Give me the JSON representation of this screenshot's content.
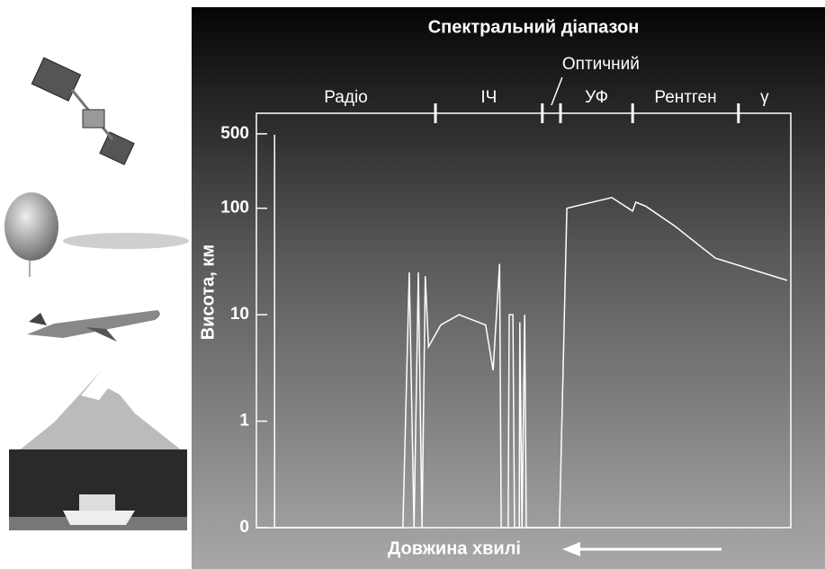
{
  "chart_data": {
    "type": "line",
    "title": "Спектральний діапазон",
    "ylabel": "Висота, км",
    "xlabel": "Довжина хвилі",
    "log_y": true,
    "color": "#ffffff",
    "ylim": [
      0.1,
      780
    ],
    "yticks": [
      {
        "value": 0.1,
        "label": "0"
      },
      1,
      10,
      100,
      500
    ],
    "xlim": [
      0,
      100
    ],
    "spectral_bands": {
      "names": [
        "Радіо",
        "ІЧ",
        "Оптичний",
        "УФ",
        "Рентген",
        "γ"
      ],
      "edges": [
        33.5,
        53.5,
        56.9,
        70.4,
        90.2
      ]
    },
    "x": [
      3.4,
      3.4,
      27.4,
      28.6,
      29.5,
      30.3,
      31.0,
      31.6,
      32.2,
      34.5,
      37.9,
      42.9,
      44.3,
      45.5,
      45.8,
      47.1,
      47.3,
      48.0,
      48.3,
      49.2,
      49.3,
      49.7,
      50.2,
      50.5,
      56.7,
      58.1,
      66.5,
      70.4,
      71.0,
      72.9,
      78.3,
      85.9,
      99.3
    ],
    "values": [
      490,
      0.1,
      0.1,
      25,
      0.1,
      25,
      0.1,
      23,
      5,
      8,
      10,
      8,
      3,
      30,
      0.1,
      0.1,
      10,
      10,
      0.1,
      0.1,
      8.5,
      0.1,
      10,
      0.1,
      0.1,
      100,
      126,
      94,
      114,
      104,
      68,
      34,
      21
    ]
  }
}
